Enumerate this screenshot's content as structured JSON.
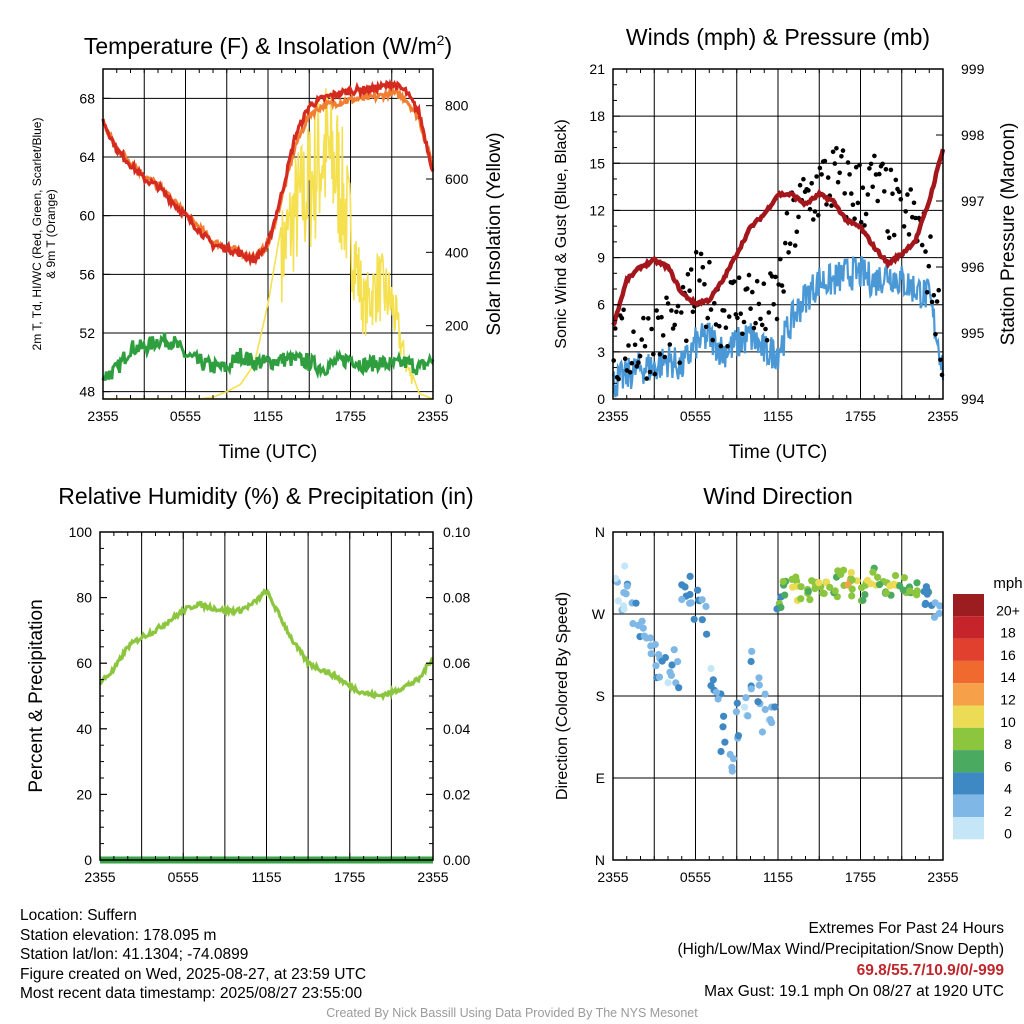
{
  "colors": {
    "temp": "#d42a1f",
    "dew": "#e5402a",
    "heat_index": "#2e9e3e",
    "wind_chill_9m": "#f07f33",
    "insolation": "#f5e050",
    "wind_speed": "#4a98d6",
    "gust": "#000000",
    "pressure": "#a3161b",
    "rh": "#8cc63f",
    "precip": "#3aa347"
  },
  "charts": {
    "temp": {
      "title": "Temperature (F) & Insolation (W/m",
      "title_sup": "2",
      "title_end": ")",
      "ylabel_lines": [
        "2m T, Td, HI/WC (Red, Green, Scarlet/Blue)",
        "& 9m T (Orange)"
      ],
      "y2label": "Solar Insolation (Yellow)",
      "xlabel": "Time (UTC)",
      "yticks": [
        "48",
        "52",
        "56",
        "60",
        "64",
        "68"
      ],
      "y2ticks": [
        "0",
        "200",
        "400",
        "600",
        "800"
      ],
      "xticks": [
        "2355",
        "0555",
        "1155",
        "1755",
        "2355"
      ]
    },
    "wind": {
      "title": "Winds (mph) & Pressure (mb)",
      "ylabel": "Sonic Wind & Gust (Blue, Black)",
      "y2label": "Station Pressure (Maroon)",
      "xlabel": "Time (UTC)",
      "yticks": [
        "0",
        "3",
        "6",
        "9",
        "12",
        "15",
        "18",
        "21"
      ],
      "y2ticks": [
        "994",
        "995",
        "996",
        "997",
        "998",
        "999"
      ],
      "xticks": [
        "2355",
        "0555",
        "1155",
        "1755",
        "2355"
      ]
    },
    "rh": {
      "title": "Relative Humidity (%) & Precipitation (in)",
      "ylabel": "Percent & Precipitation",
      "yticks": [
        "0",
        "20",
        "40",
        "60",
        "80",
        "100"
      ],
      "y2ticks": [
        "0.00",
        "0.02",
        "0.04",
        "0.06",
        "0.08",
        "0.10"
      ],
      "xticks": [
        "2355",
        "0555",
        "1155",
        "1755",
        "2355"
      ]
    },
    "dir": {
      "title": "Wind Direction",
      "ylabel": "Direction (Colored By Speed)",
      "yticks": [
        "N",
        "E",
        "S",
        "W",
        "N"
      ],
      "xticks": [
        "2355",
        "0555",
        "1155",
        "1755",
        "2355"
      ],
      "legend_title": "mph",
      "legend": [
        {
          "label": "20+",
          "color": "#9b1d20"
        },
        {
          "label": "18",
          "color": "#c4242a"
        },
        {
          "label": "16",
          "color": "#e0402d"
        },
        {
          "label": "14",
          "color": "#f06a30"
        },
        {
          "label": "12",
          "color": "#f7a04a"
        },
        {
          "label": "10",
          "color": "#ebdb55"
        },
        {
          "label": "8",
          "color": "#8cc63f"
        },
        {
          "label": "6",
          "color": "#4aaa5f"
        },
        {
          "label": "4",
          "color": "#3e88c4"
        },
        {
          "label": "2",
          "color": "#7fb8e6"
        },
        {
          "label": "0",
          "color": "#c4e6f7"
        }
      ]
    }
  },
  "chart_data": [
    {
      "type": "line",
      "title": "Temperature (F) & Insolation (W/m2)",
      "xlabel": "Time (UTC)",
      "ylabel": "2m T, Td, HI/WC (Red, Green, Scarlet/Blue) & 9m T (Orange)",
      "y2label": "Solar Insolation (Yellow)",
      "x_hours": [
        0,
        1,
        2,
        3,
        4,
        5,
        6,
        7,
        8,
        9,
        10,
        11,
        12,
        13,
        14,
        15,
        16,
        17,
        18,
        19,
        20,
        21,
        22,
        23,
        24
      ],
      "ylim": [
        47.5,
        70
      ],
      "y2lim": [
        0,
        900
      ],
      "series": [
        {
          "name": "2m T",
          "axis": "left",
          "values": [
            66.5,
            64.5,
            63.5,
            62.5,
            62.0,
            61.0,
            60.0,
            59.0,
            58.0,
            57.8,
            57.4,
            57.0,
            58.0,
            61.5,
            65.5,
            67.5,
            68.0,
            68.3,
            68.5,
            68.6,
            68.7,
            69.0,
            68.5,
            67.0,
            63.0
          ]
        },
        {
          "name": "9m T",
          "axis": "left",
          "values": [
            66.3,
            64.6,
            63.7,
            62.7,
            62.1,
            61.1,
            60.1,
            59.2,
            58.2,
            57.9,
            57.5,
            57.1,
            58.0,
            61.2,
            64.8,
            66.9,
            67.5,
            67.7,
            67.9,
            68.0,
            68.1,
            68.4,
            68.0,
            66.6,
            63.2
          ]
        },
        {
          "name": "Td / HI",
          "axis": "left",
          "values": [
            49.0,
            49.5,
            51.0,
            51.0,
            51.5,
            51.5,
            50.5,
            50.0,
            49.7,
            49.6,
            50.5,
            50.0,
            50.0,
            50.2,
            50.2,
            50.0,
            49.6,
            50.0,
            50.3,
            49.8,
            50.0,
            49.8,
            50.0,
            49.6,
            50.2
          ]
        },
        {
          "name": "Solar Insolation",
          "axis": "right",
          "values": [
            0,
            0,
            0,
            0,
            0,
            0,
            0,
            0,
            5,
            20,
            40,
            95,
            260,
            480,
            620,
            700,
            820,
            760,
            550,
            300,
            380,
            320,
            120,
            15,
            0
          ]
        }
      ]
    },
    {
      "type": "line",
      "title": "Winds (mph) & Pressure (mb)",
      "xlabel": "Time (UTC)",
      "ylabel": "Sonic Wind & Gust (Blue, Black)",
      "y2label": "Station Pressure (Maroon)",
      "x_hours": [
        0,
        1,
        2,
        3,
        4,
        5,
        6,
        7,
        8,
        9,
        10,
        11,
        12,
        13,
        14,
        15,
        16,
        17,
        18,
        19,
        20,
        21,
        22,
        23,
        24
      ],
      "ylim": [
        0,
        21
      ],
      "y2lim": [
        994,
        999
      ],
      "series": [
        {
          "name": "Sonic Wind",
          "axis": "left",
          "values": [
            1.0,
            1.5,
            2.0,
            2.0,
            2.5,
            2.0,
            3.5,
            4.0,
            3.0,
            3.5,
            4.0,
            3.0,
            3.0,
            5.0,
            6.5,
            7.5,
            7.5,
            8.0,
            8.0,
            7.5,
            8.0,
            7.5,
            7.0,
            6.5,
            2.0
          ]
        },
        {
          "name": "Gust",
          "axis": "left",
          "values": [
            2.5,
            3.5,
            3.5,
            4.0,
            4.5,
            4.5,
            7.0,
            6.5,
            5.5,
            6.0,
            6.5,
            5.0,
            6.5,
            11.0,
            12.5,
            13.5,
            14.0,
            13.5,
            13.0,
            13.5,
            12.5,
            11.0,
            11.5,
            8.5,
            3.5
          ]
        },
        {
          "name": "Station Pressure",
          "axis": "right",
          "values": [
            995.1,
            995.8,
            996.0,
            996.1,
            996.0,
            995.6,
            995.45,
            995.5,
            995.8,
            996.2,
            996.6,
            996.8,
            997.1,
            997.1,
            996.95,
            997.1,
            997.0,
            996.7,
            996.6,
            996.3,
            996.05,
            996.2,
            996.4,
            997.0,
            997.8
          ]
        }
      ]
    },
    {
      "type": "line",
      "title": "Relative Humidity (%) & Precipitation (in)",
      "ylabel": "Percent & Precipitation",
      "x_hours": [
        0,
        1,
        2,
        3,
        4,
        5,
        6,
        7,
        8,
        9,
        10,
        11,
        12,
        13,
        14,
        15,
        16,
        17,
        18,
        19,
        20,
        21,
        22,
        23,
        24
      ],
      "ylim": [
        0,
        100
      ],
      "y2lim": [
        0,
        0.1
      ],
      "series": [
        {
          "name": "Relative Humidity",
          "axis": "left",
          "values": [
            54,
            58,
            65,
            68,
            70,
            73,
            76,
            78,
            77,
            76,
            76,
            78,
            82,
            74,
            66,
            60,
            58,
            56,
            53,
            51,
            50,
            51,
            53,
            55,
            62
          ]
        },
        {
          "name": "Precipitation",
          "axis": "right",
          "values": [
            0,
            0,
            0,
            0,
            0,
            0,
            0,
            0,
            0,
            0,
            0,
            0,
            0,
            0,
            0,
            0,
            0,
            0,
            0,
            0,
            0,
            0,
            0,
            0,
            0
          ]
        }
      ]
    },
    {
      "type": "scatter",
      "title": "Wind Direction",
      "ylabel": "Direction (Colored By Speed)",
      "x_hours": [
        0.2,
        0.5,
        1.0,
        1.5,
        2.0,
        2.5,
        3.0,
        3.5,
        4.0,
        4.5,
        5.0,
        5.5,
        6.0,
        6.5,
        7.0,
        7.5,
        8.0,
        8.5,
        9.0,
        9.5,
        10.0,
        10.5,
        11.0,
        11.5,
        12.0,
        12.5,
        13.0,
        13.5,
        14.0,
        14.5,
        15.0,
        15.5,
        16.0,
        16.5,
        17.0,
        17.5,
        18.0,
        18.5,
        19.0,
        19.5,
        20.0,
        20.5,
        21.0,
        21.5,
        22.0,
        22.5,
        23.0,
        23.5
      ],
      "direction_deg": [
        300,
        285,
        310,
        270,
        260,
        230,
        215,
        200,
        195,
        210,
        280,
        295,
        280,
        270,
        195,
        170,
        140,
        120,
        150,
        175,
        210,
        180,
        160,
        170,
        280,
        300,
        310,
        295,
        290,
        305,
        300,
        295,
        300,
        310,
        305,
        300,
        295,
        300,
        310,
        295,
        300,
        305,
        300,
        295,
        300,
        290,
        285,
        275
      ],
      "speed_mph": [
        1,
        1,
        2,
        2,
        2,
        2,
        2,
        3,
        2,
        2,
        4,
        3,
        4,
        2,
        2,
        3,
        3,
        2,
        3,
        2,
        3,
        2,
        2,
        3,
        6,
        7,
        8,
        9,
        7,
        8,
        8,
        9,
        7,
        8,
        10,
        8,
        7,
        9,
        8,
        7,
        8,
        9,
        7,
        6,
        7,
        5,
        4,
        3
      ]
    }
  ],
  "footer": {
    "location": "Location: Suffern",
    "elevation": "Station elevation: 178.095 m",
    "latlon": "Station lat/lon: 41.1304; -74.0899",
    "created": "Figure created on Wed, 2025-08-27, at 23:59 UTC",
    "recent": "Most recent data timestamp: 2025/08/27 23:55:00",
    "extremes_title": "Extremes For Past 24 Hours",
    "extremes_legend": "(High/Low/Max Wind/Precipitation/Snow Depth)",
    "extremes_values": "69.8/55.7/10.9/0/-999",
    "max_gust": "Max Gust: 19.1 mph On 08/27 at 1920 UTC",
    "credit": "Created By Nick Bassill Using Data Provided By The NYS Mesonet"
  }
}
